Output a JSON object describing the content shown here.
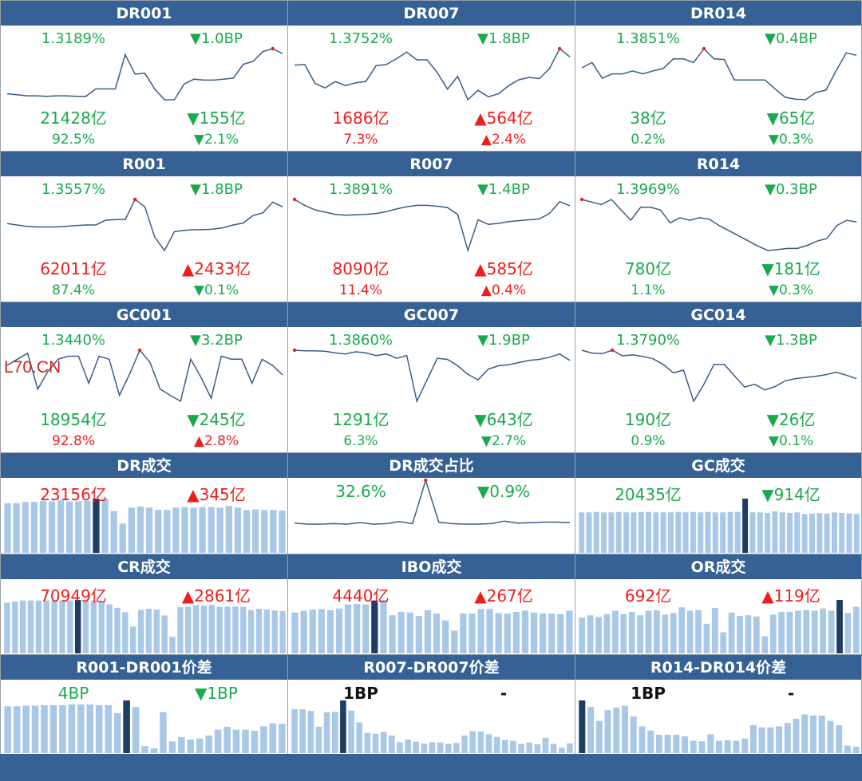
{
  "watermark": "L70.CN",
  "colors": {
    "header": "#356194",
    "up": "#ef1c1c",
    "down": "#1aaa4e",
    "line": "#3a5d86",
    "bar": "#a9c8e8",
    "bar_highlight": "#1f3d63"
  },
  "cells": [
    {
      "title": "DR001",
      "kind": "line",
      "rate": "1.3189%",
      "rate_color": "g",
      "rate_chg": "▼1.0BP",
      "rate_chg_color": "g",
      "volume": "21428亿",
      "volume_color": "g",
      "volume_chg": "▼155亿",
      "volume_chg_color": "g",
      "share": "92.5%",
      "share_color": "g",
      "share_chg": "▼2.1%",
      "share_chg_color": "g",
      "series": [
        1.27,
        1.268,
        1.266,
        1.266,
        1.265,
        1.266,
        1.266,
        1.265,
        1.265,
        1.28,
        1.28,
        1.28,
        1.35,
        1.31,
        1.312,
        1.28,
        1.258,
        1.258,
        1.29,
        1.3,
        1.298,
        1.298,
        1.3,
        1.302,
        1.33,
        1.336,
        1.356,
        1.362,
        1.352
      ],
      "max_index": 27
    },
    {
      "title": "DR007",
      "kind": "line",
      "rate": "1.3752%",
      "rate_color": "g",
      "rate_chg": "▼1.8BP",
      "rate_chg_color": "g",
      "volume": "1686亿",
      "volume_color": "r",
      "volume_chg": "▲564亿",
      "volume_chg_color": "r",
      "share": "7.3%",
      "share_color": "r",
      "share_chg": "▲2.4%",
      "share_chg_color": "r",
      "series": [
        1.361,
        1.362,
        1.33,
        1.322,
        1.333,
        1.326,
        1.331,
        1.333,
        1.36,
        1.362,
        1.372,
        1.383,
        1.37,
        1.37,
        1.348,
        1.32,
        1.342,
        1.302,
        1.318,
        1.307,
        1.312,
        1.326,
        1.336,
        1.34,
        1.338,
        1.355,
        1.389,
        1.375
      ],
      "max_index": 26
    },
    {
      "title": "DR014",
      "kind": "line",
      "rate": "1.3851%",
      "rate_color": "g",
      "rate_chg": "▼0.4BP",
      "rate_chg_color": "g",
      "volume": "38亿",
      "volume_color": "g",
      "volume_chg": "▼65亿",
      "volume_chg_color": "g",
      "share": "0.2%",
      "share_color": "g",
      "share_chg": "▼0.3%",
      "share_chg_color": "g",
      "series": [
        1.357,
        1.366,
        1.34,
        1.347,
        1.347,
        1.352,
        1.347,
        1.352,
        1.356,
        1.372,
        1.372,
        1.366,
        1.389,
        1.372,
        1.371,
        1.337,
        1.337,
        1.337,
        1.337,
        1.322,
        1.308,
        1.305,
        1.304,
        1.316,
        1.32,
        1.352,
        1.382,
        1.378
      ],
      "max_index": 12
    },
    {
      "title": "R001",
      "kind": "line",
      "rate": "1.3557%",
      "rate_color": "g",
      "rate_chg": "▼1.8BP",
      "rate_chg_color": "g",
      "volume": "62011亿",
      "volume_color": "r",
      "volume_chg": "▲2433亿",
      "volume_chg_color": "r",
      "share": "87.4%",
      "share_color": "g",
      "share_chg": "▼0.1%",
      "share_chg_color": "g",
      "series": [
        1.32,
        1.318,
        1.316,
        1.315,
        1.315,
        1.315,
        1.316,
        1.317,
        1.318,
        1.318,
        1.325,
        1.326,
        1.326,
        1.356,
        1.345,
        1.3,
        1.28,
        1.308,
        1.31,
        1.311,
        1.311,
        1.312,
        1.314,
        1.318,
        1.321,
        1.332,
        1.336,
        1.352,
        1.345
      ],
      "max_index": 13
    },
    {
      "title": "R007",
      "kind": "line",
      "rate": "1.3891%",
      "rate_color": "g",
      "rate_chg": "▼1.4BP",
      "rate_chg_color": "g",
      "volume": "8090亿",
      "volume_color": "r",
      "volume_chg": "▲585亿",
      "volume_chg_color": "r",
      "share": "11.4%",
      "share_color": "r",
      "share_chg": "▲0.4%",
      "share_chg_color": "r",
      "series": [
        1.403,
        1.39,
        1.38,
        1.375,
        1.37,
        1.368,
        1.369,
        1.37,
        1.372,
        1.376,
        1.382,
        1.387,
        1.39,
        1.39,
        1.388,
        1.385,
        1.37,
        1.29,
        1.358,
        1.348,
        1.35,
        1.354,
        1.356,
        1.358,
        1.36,
        1.372,
        1.398,
        1.389
      ],
      "max_index": 0
    },
    {
      "title": "R014",
      "kind": "line",
      "rate": "1.3969%",
      "rate_color": "g",
      "rate_chg": "▼0.3BP",
      "rate_chg_color": "g",
      "volume": "780亿",
      "volume_color": "g",
      "volume_chg": "▼181亿",
      "volume_chg_color": "g",
      "share": "1.1%",
      "share_color": "g",
      "share_chg": "▼0.3%",
      "share_chg_color": "g",
      "series": [
        1.44,
        1.435,
        1.43,
        1.44,
        1.42,
        1.4,
        1.425,
        1.425,
        1.42,
        1.395,
        1.405,
        1.4,
        1.405,
        1.402,
        1.39,
        1.38,
        1.37,
        1.36,
        1.35,
        1.342,
        1.344,
        1.346,
        1.346,
        1.352,
        1.36,
        1.365,
        1.39,
        1.4,
        1.397
      ],
      "max_index": 0
    },
    {
      "title": "GC001",
      "kind": "line",
      "rate": "1.3440%",
      "rate_color": "g",
      "rate_chg": "▼3.2BP",
      "rate_chg_color": "g",
      "volume": "18954亿",
      "volume_color": "g",
      "volume_chg": "▼245亿",
      "volume_chg_color": "g",
      "share": "92.8%",
      "share_color": "r",
      "share_chg": "▲2.8%",
      "share_chg_color": "r",
      "series": [
        1.36,
        1.37,
        1.38,
        1.32,
        1.35,
        1.37,
        1.375,
        1.375,
        1.33,
        1.375,
        1.37,
        1.31,
        1.345,
        1.385,
        1.365,
        1.32,
        1.31,
        1.3,
        1.37,
        1.34,
        1.305,
        1.375,
        1.37,
        1.37,
        1.33,
        1.37,
        1.36,
        1.344
      ],
      "max_index": 13
    },
    {
      "title": "GC007",
      "kind": "line",
      "rate": "1.3860%",
      "rate_color": "g",
      "rate_chg": "▼1.9BP",
      "rate_chg_color": "g",
      "volume": "1291亿",
      "volume_color": "g",
      "volume_chg": "▼643亿",
      "volume_chg_color": "g",
      "share": "6.3%",
      "share_color": "g",
      "share_chg": "▼2.7%",
      "share_chg_color": "g",
      "series": [
        1.405,
        1.404,
        1.404,
        1.403,
        1.4,
        1.398,
        1.402,
        1.4,
        1.395,
        1.398,
        1.39,
        1.395,
        1.31,
        1.35,
        1.39,
        1.388,
        1.376,
        1.36,
        1.35,
        1.37,
        1.376,
        1.378,
        1.382,
        1.386,
        1.388,
        1.392,
        1.398,
        1.386
      ],
      "max_index": 0
    },
    {
      "title": "GC014",
      "kind": "line",
      "rate": "1.3790%",
      "rate_color": "g",
      "rate_chg": "▼1.3BP",
      "rate_chg_color": "g",
      "volume": "190亿",
      "volume_color": "g",
      "volume_chg": "▼26亿",
      "volume_chg_color": "g",
      "share": "0.9%",
      "share_color": "g",
      "share_chg": "▼0.1%",
      "share_chg_color": "g",
      "series": [
        1.41,
        1.405,
        1.404,
        1.41,
        1.4,
        1.402,
        1.399,
        1.395,
        1.385,
        1.37,
        1.375,
        1.32,
        1.35,
        1.385,
        1.385,
        1.365,
        1.345,
        1.35,
        1.34,
        1.346,
        1.356,
        1.36,
        1.362,
        1.364,
        1.367,
        1.371,
        1.366,
        1.36
      ],
      "max_index": 3
    },
    {
      "title": "DR成交",
      "kind": "bar",
      "value": "23156亿",
      "value_color": "r",
      "chg": "▲345亿",
      "chg_color": "r",
      "values": [
        88,
        88,
        90,
        90,
        92,
        91,
        93,
        91,
        91,
        92,
        96,
        96,
        74,
        52,
        80,
        82,
        80,
        76,
        76,
        80,
        81,
        80,
        81,
        81,
        80,
        83,
        80,
        76,
        77,
        76,
        76,
        75
      ],
      "highlight": 10
    },
    {
      "title": "DR成交占比",
      "kind": "line",
      "value": "32.6%",
      "value_color": "g",
      "chg": "▼0.9%",
      "chg_color": "g",
      "series": [
        3,
        1,
        1,
        2,
        1,
        4,
        1,
        2,
        6,
        2,
        88,
        5,
        2,
        1,
        1,
        2,
        7,
        3,
        4,
        5,
        5,
        4
      ],
      "max_index": 10
    },
    {
      "title": "GC成交",
      "kind": "bar",
      "value": "20435亿",
      "value_color": "g",
      "chg": "▼914亿",
      "chg_color": "g",
      "values": [
        76,
        76,
        77,
        76,
        76,
        77,
        76,
        76,
        77,
        77,
        76,
        76,
        76,
        77,
        76,
        77,
        76,
        77,
        76,
        76,
        77,
        77,
        102,
        76,
        76,
        75,
        78,
        76,
        75,
        76,
        73,
        74,
        75,
        74,
        76,
        75,
        74,
        73
      ],
      "highlight": 22
    },
    {
      "title": "CR成交",
      "kind": "bar",
      "value": "70949亿",
      "value_color": "r",
      "chg": "▲2861亿",
      "chg_color": "r",
      "values": [
        91,
        93,
        95,
        95,
        95,
        95,
        95,
        95,
        95,
        96,
        95,
        95,
        92,
        88,
        82,
        74,
        48,
        78,
        80,
        79,
        68,
        30,
        83,
        84,
        87,
        86,
        87,
        84,
        84,
        84,
        84,
        78,
        80,
        79,
        77,
        76
      ],
      "highlight": 9
    },
    {
      "title": "IBO成交",
      "kind": "bar",
      "value": "4440亿",
      "value_color": "r",
      "chg": "▲267亿",
      "chg_color": "r",
      "values": [
        72,
        75,
        77,
        78,
        76,
        79,
        86,
        87,
        86,
        93,
        94,
        67,
        73,
        72,
        66,
        76,
        70,
        58,
        40,
        70,
        70,
        78,
        78,
        71,
        70,
        73,
        75,
        72,
        70,
        70,
        69,
        75
      ],
      "highlight": 9
    },
    {
      "title": "OR成交",
      "kind": "bar",
      "value": "692亿",
      "value_color": "r",
      "chg": "▲119亿",
      "chg_color": "r",
      "values": [
        63,
        67,
        64,
        69,
        75,
        69,
        73,
        67,
        75,
        76,
        68,
        71,
        81,
        75,
        76,
        52,
        80,
        37,
        72,
        66,
        67,
        65,
        30,
        68,
        73,
        73,
        75,
        76,
        75,
        79,
        75,
        94,
        71,
        82
      ],
      "highlight": 31
    },
    {
      "title": "R001-DR001价差",
      "kind": "bar",
      "value": "4BP",
      "value_color": "g",
      "chg": "▼1BP",
      "chg_color": "g",
      "values": [
        80,
        80,
        81,
        81,
        82,
        82,
        82,
        83,
        83,
        83,
        82,
        82,
        68,
        90,
        79,
        12,
        8,
        70,
        20,
        27,
        23,
        25,
        30,
        40,
        45,
        40,
        40,
        38,
        46,
        51,
        50
      ],
      "highlight": 13
    },
    {
      "title": "R007-DR007价差",
      "kind": "bar",
      "value": "1BP",
      "value_color": "k",
      "chg": "-",
      "chg_color": "k",
      "values": [
        100,
        100,
        96,
        60,
        93,
        94,
        120,
        97,
        70,
        46,
        44,
        48,
        40,
        25,
        31,
        26,
        22,
        25,
        24,
        21,
        23,
        40,
        50,
        49,
        43,
        37,
        30,
        28,
        21,
        24,
        20,
        35,
        21,
        12,
        22
      ],
      "highlight": 6
    },
    {
      "title": "R014-DR014价差",
      "kind": "bar",
      "value": "1BP",
      "value_color": "k",
      "chg": "-",
      "chg_color": "k",
      "values": [
        98,
        86,
        60,
        80,
        85,
        88,
        68,
        50,
        42,
        34,
        34,
        34,
        31,
        23,
        22,
        35,
        23,
        24,
        23,
        27,
        52,
        48,
        48,
        50,
        56,
        64,
        72,
        70,
        70,
        60,
        52,
        14,
        12
      ],
      "highlight": 0
    }
  ]
}
